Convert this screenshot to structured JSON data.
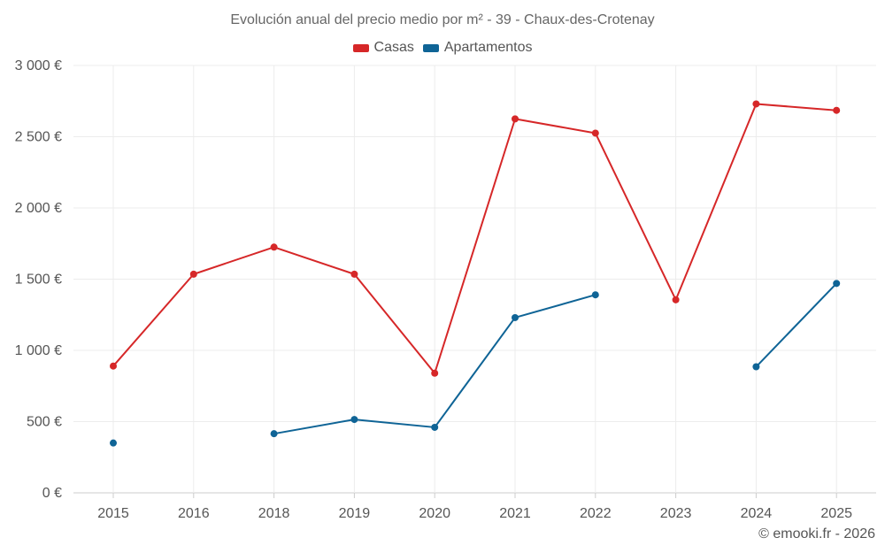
{
  "chart_data": {
    "type": "line",
    "title": "Evolución anual del precio medio por m² - 39 - Chaux-des-Crotenay",
    "categories": [
      "2015",
      "2016",
      "2018",
      "2019",
      "2020",
      "2021",
      "2022",
      "2023",
      "2024",
      "2025"
    ],
    "series": [
      {
        "name": "Casas",
        "color": "#d62728",
        "values": [
          890,
          1535,
          1725,
          1535,
          840,
          2625,
          2525,
          1355,
          2730,
          2685
        ]
      },
      {
        "name": "Apartamentos",
        "color": "#0f6496",
        "values": [
          350,
          null,
          415,
          515,
          460,
          1230,
          1390,
          null,
          885,
          1470
        ]
      }
    ],
    "ylim": [
      0,
      3000
    ],
    "yticks": [
      0,
      500,
      1000,
      1500,
      2000,
      2500,
      3000
    ],
    "ytick_labels": [
      "0 €",
      "500 €",
      "1 000 €",
      "1 500 €",
      "2 000 €",
      "2 500 €",
      "3 000 €"
    ],
    "xlabel": "",
    "ylabel": "",
    "grid": true,
    "legend_position": "top-center"
  },
  "credit": "© emooki.fr - 2026"
}
